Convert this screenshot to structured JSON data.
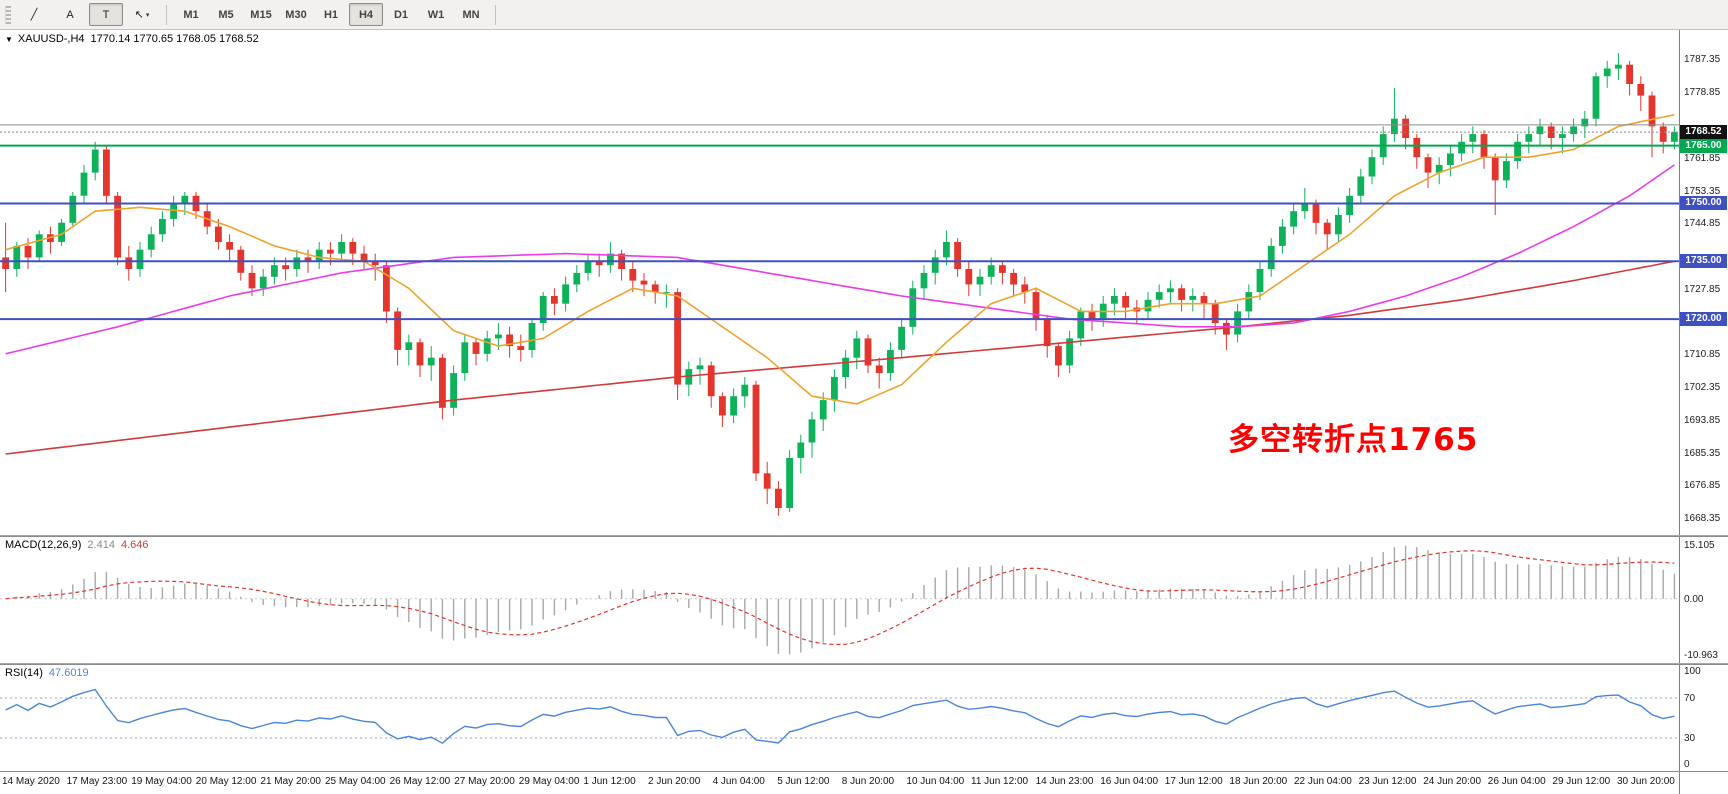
{
  "toolbar": {
    "tools": [
      {
        "name": "trendline-tool",
        "glyph": "╱"
      },
      {
        "name": "text-tool",
        "glyph": "A"
      },
      {
        "name": "text-label-tool",
        "glyph": "T",
        "active": true
      },
      {
        "name": "cursor-tool",
        "glyph": "↖",
        "caret": true
      }
    ],
    "timeframes": [
      "M1",
      "M5",
      "M15",
      "M30",
      "H1",
      "H4",
      "D1",
      "W1",
      "MN"
    ],
    "active_timeframe": "H4"
  },
  "chart": {
    "header": {
      "symbol": "XAUUSD-,H4",
      "ohlc": "1770.14 1770.65 1768.05 1768.52"
    },
    "annotation": {
      "text": "多空转折点1765",
      "color": "#ff0000"
    }
  },
  "colors": {
    "candle_up": "#0db25b",
    "candle_down": "#e3352c",
    "macd_hist": "#a8a8a8",
    "macd_signal": "#e3352c",
    "macd_zero": "#c9c9c9",
    "rsi_line": "#4a86d8",
    "rsi_level": "#98a6c8",
    "price_badge": "#111111"
  },
  "chart_data": {
    "type": "candlestick",
    "symbol": "XAUUSD",
    "timeframe": "H4",
    "ylim": [
      1664,
      1795
    ],
    "y_ticks": [
      "1787.35",
      "1778.85",
      "1761.85",
      "1753.35",
      "1744.85",
      "1727.85",
      "1710.85",
      "1702.35",
      "1693.85",
      "1685.35",
      "1676.85",
      "1668.35"
    ],
    "price_line": {
      "price": 1768.52,
      "badge": "1768.52"
    },
    "hlines": [
      {
        "price": 1770.4,
        "color": "#8c8c8c",
        "width": 1,
        "badge": null
      },
      {
        "price": 1765.0,
        "color": "#00a94f",
        "width": 2,
        "badge": "1765.00"
      },
      {
        "price": 1750.0,
        "color": "#3f51c1",
        "width": 2,
        "badge": "1750.00"
      },
      {
        "price": 1735.0,
        "color": "#3f51c1",
        "width": 2,
        "badge": "1735.00"
      },
      {
        "price": 1720.0,
        "color": "#3f51c1",
        "width": 2,
        "badge": "1720.00"
      }
    ],
    "moving_averages": [
      {
        "name": "ma-slow-red",
        "color": "#d23a3a",
        "points": [
          [
            0,
            1685
          ],
          [
            20,
            1692
          ],
          [
            40,
            1699
          ],
          [
            60,
            1705
          ],
          [
            80,
            1710
          ],
          [
            95,
            1714
          ],
          [
            110,
            1718
          ],
          [
            120,
            1721
          ],
          [
            130,
            1725
          ],
          [
            140,
            1730
          ],
          [
            149,
            1735
          ]
        ]
      },
      {
        "name": "ma-mid-magenta",
        "color": "#e83ee8",
        "points": [
          [
            0,
            1711
          ],
          [
            10,
            1718
          ],
          [
            20,
            1726
          ],
          [
            30,
            1732
          ],
          [
            40,
            1736
          ],
          [
            50,
            1737
          ],
          [
            60,
            1736
          ],
          [
            70,
            1731
          ],
          [
            80,
            1726
          ],
          [
            90,
            1722
          ],
          [
            95,
            1720
          ],
          [
            100,
            1719
          ],
          [
            105,
            1718
          ],
          [
            110,
            1718
          ],
          [
            115,
            1719
          ],
          [
            120,
            1722
          ],
          [
            125,
            1726
          ],
          [
            130,
            1731
          ],
          [
            135,
            1737
          ],
          [
            140,
            1744
          ],
          [
            145,
            1752
          ],
          [
            149,
            1760
          ]
        ]
      },
      {
        "name": "ma-fast-orange",
        "color": "#efa32e",
        "points": [
          [
            0,
            1738
          ],
          [
            5,
            1742
          ],
          [
            8,
            1748
          ],
          [
            12,
            1749
          ],
          [
            16,
            1748
          ],
          [
            20,
            1744
          ],
          [
            24,
            1739
          ],
          [
            28,
            1736
          ],
          [
            32,
            1735
          ],
          [
            36,
            1728
          ],
          [
            40,
            1717
          ],
          [
            44,
            1713
          ],
          [
            48,
            1715
          ],
          [
            52,
            1722
          ],
          [
            56,
            1728
          ],
          [
            60,
            1726
          ],
          [
            64,
            1718
          ],
          [
            68,
            1710
          ],
          [
            72,
            1700
          ],
          [
            76,
            1698
          ],
          [
            80,
            1703
          ],
          [
            84,
            1714
          ],
          [
            88,
            1724
          ],
          [
            92,
            1728
          ],
          [
            96,
            1722
          ],
          [
            100,
            1722
          ],
          [
            104,
            1724
          ],
          [
            108,
            1724
          ],
          [
            112,
            1726
          ],
          [
            116,
            1734
          ],
          [
            120,
            1742
          ],
          [
            124,
            1752
          ],
          [
            128,
            1758
          ],
          [
            132,
            1762
          ],
          [
            136,
            1762
          ],
          [
            140,
            1764
          ],
          [
            144,
            1770
          ],
          [
            149,
            1773
          ]
        ]
      }
    ],
    "ohlc": [
      [
        1736,
        1745,
        1727,
        1733
      ],
      [
        1733,
        1740,
        1731,
        1739
      ],
      [
        1739,
        1741,
        1733,
        1736
      ],
      [
        1736,
        1743,
        1735,
        1742
      ],
      [
        1742,
        1744,
        1737,
        1740
      ],
      [
        1740,
        1746,
        1739,
        1745
      ],
      [
        1745,
        1753,
        1744,
        1752
      ],
      [
        1752,
        1760,
        1750,
        1758
      ],
      [
        1758,
        1766,
        1756,
        1764
      ],
      [
        1764,
        1765,
        1750,
        1752
      ],
      [
        1752,
        1753,
        1734,
        1736
      ],
      [
        1736,
        1739,
        1730,
        1733
      ],
      [
        1733,
        1740,
        1731,
        1738
      ],
      [
        1738,
        1744,
        1736,
        1742
      ],
      [
        1742,
        1748,
        1740,
        1746
      ],
      [
        1746,
        1752,
        1744,
        1750
      ],
      [
        1750,
        1753,
        1747,
        1752
      ],
      [
        1752,
        1753,
        1746,
        1748
      ],
      [
        1748,
        1750,
        1742,
        1744
      ],
      [
        1744,
        1746,
        1738,
        1740
      ],
      [
        1740,
        1742,
        1735,
        1738
      ],
      [
        1738,
        1739,
        1730,
        1732
      ],
      [
        1732,
        1734,
        1726,
        1728
      ],
      [
        1728,
        1733,
        1726,
        1731
      ],
      [
        1731,
        1736,
        1729,
        1734
      ],
      [
        1734,
        1736,
        1730,
        1733
      ],
      [
        1733,
        1738,
        1731,
        1736
      ],
      [
        1736,
        1738,
        1732,
        1735
      ],
      [
        1735,
        1740,
        1733,
        1738
      ],
      [
        1738,
        1740,
        1734,
        1737
      ],
      [
        1737,
        1742,
        1735,
        1740
      ],
      [
        1740,
        1741,
        1734,
        1737
      ],
      [
        1737,
        1739,
        1733,
        1735
      ],
      [
        1735,
        1737,
        1730,
        1734
      ],
      [
        1734,
        1735,
        1719,
        1722
      ],
      [
        1722,
        1723,
        1708,
        1712
      ],
      [
        1712,
        1716,
        1708,
        1714
      ],
      [
        1714,
        1715,
        1705,
        1708
      ],
      [
        1708,
        1713,
        1704,
        1710
      ],
      [
        1710,
        1711,
        1694,
        1697
      ],
      [
        1697,
        1708,
        1695,
        1706
      ],
      [
        1706,
        1716,
        1704,
        1714
      ],
      [
        1714,
        1715,
        1708,
        1711
      ],
      [
        1711,
        1717,
        1709,
        1715
      ],
      [
        1715,
        1719,
        1712,
        1716
      ],
      [
        1716,
        1718,
        1710,
        1713
      ],
      [
        1713,
        1716,
        1709,
        1712
      ],
      [
        1712,
        1720,
        1710,
        1719
      ],
      [
        1719,
        1727,
        1717,
        1726
      ],
      [
        1726,
        1728,
        1721,
        1724
      ],
      [
        1724,
        1731,
        1722,
        1729
      ],
      [
        1729,
        1734,
        1727,
        1732
      ],
      [
        1732,
        1737,
        1730,
        1735
      ],
      [
        1735,
        1737,
        1731,
        1734
      ],
      [
        1734,
        1740,
        1732,
        1737
      ],
      [
        1737,
        1738,
        1730,
        1733
      ],
      [
        1733,
        1735,
        1727,
        1730
      ],
      [
        1730,
        1732,
        1726,
        1729
      ],
      [
        1729,
        1730,
        1724,
        1727
      ],
      [
        1727,
        1729,
        1723,
        1727
      ],
      [
        1727,
        1728,
        1699,
        1703
      ],
      [
        1703,
        1709,
        1700,
        1707
      ],
      [
        1707,
        1710,
        1703,
        1708
      ],
      [
        1708,
        1709,
        1697,
        1700
      ],
      [
        1700,
        1701,
        1692,
        1695
      ],
      [
        1695,
        1702,
        1693,
        1700
      ],
      [
        1700,
        1705,
        1697,
        1703
      ],
      [
        1703,
        1704,
        1678,
        1680
      ],
      [
        1680,
        1683,
        1672,
        1676
      ],
      [
        1676,
        1678,
        1669,
        1671
      ],
      [
        1671,
        1686,
        1670,
        1684
      ],
      [
        1684,
        1690,
        1680,
        1688
      ],
      [
        1688,
        1696,
        1684,
        1694
      ],
      [
        1694,
        1701,
        1691,
        1699
      ],
      [
        1699,
        1707,
        1696,
        1705
      ],
      [
        1705,
        1712,
        1702,
        1710
      ],
      [
        1710,
        1717,
        1707,
        1715
      ],
      [
        1715,
        1716,
        1706,
        1708
      ],
      [
        1708,
        1710,
        1702,
        1706
      ],
      [
        1706,
        1714,
        1704,
        1712
      ],
      [
        1712,
        1720,
        1710,
        1718
      ],
      [
        1718,
        1730,
        1716,
        1728
      ],
      [
        1728,
        1734,
        1725,
        1732
      ],
      [
        1732,
        1738,
        1729,
        1736
      ],
      [
        1736,
        1743,
        1734,
        1740
      ],
      [
        1740,
        1741,
        1731,
        1733
      ],
      [
        1733,
        1735,
        1726,
        1729
      ],
      [
        1729,
        1733,
        1726,
        1731
      ],
      [
        1731,
        1736,
        1729,
        1734
      ],
      [
        1734,
        1735,
        1729,
        1732
      ],
      [
        1732,
        1733,
        1726,
        1729
      ],
      [
        1729,
        1731,
        1724,
        1727
      ],
      [
        1727,
        1728,
        1717,
        1720
      ],
      [
        1720,
        1721,
        1710,
        1713
      ],
      [
        1713,
        1714,
        1705,
        1708
      ],
      [
        1708,
        1717,
        1706,
        1715
      ],
      [
        1715,
        1723,
        1713,
        1722
      ],
      [
        1722,
        1724,
        1717,
        1720
      ],
      [
        1720,
        1726,
        1718,
        1724
      ],
      [
        1724,
        1728,
        1721,
        1726
      ],
      [
        1726,
        1727,
        1720,
        1723
      ],
      [
        1723,
        1725,
        1719,
        1722
      ],
      [
        1722,
        1727,
        1720,
        1725
      ],
      [
        1725,
        1729,
        1723,
        1727
      ],
      [
        1727,
        1730,
        1724,
        1728
      ],
      [
        1728,
        1729,
        1722,
        1725
      ],
      [
        1725,
        1728,
        1722,
        1726
      ],
      [
        1726,
        1727,
        1720,
        1724
      ],
      [
        1724,
        1725,
        1716,
        1719
      ],
      [
        1719,
        1720,
        1712,
        1716
      ],
      [
        1716,
        1724,
        1714,
        1722
      ],
      [
        1722,
        1729,
        1720,
        1727
      ],
      [
        1727,
        1735,
        1725,
        1733
      ],
      [
        1733,
        1741,
        1731,
        1739
      ],
      [
        1739,
        1746,
        1737,
        1744
      ],
      [
        1744,
        1750,
        1742,
        1748
      ],
      [
        1748,
        1754,
        1746,
        1750
      ],
      [
        1750,
        1751,
        1742,
        1745
      ],
      [
        1745,
        1746,
        1738,
        1742
      ],
      [
        1742,
        1749,
        1740,
        1747
      ],
      [
        1747,
        1754,
        1745,
        1752
      ],
      [
        1752,
        1759,
        1750,
        1757
      ],
      [
        1757,
        1764,
        1755,
        1762
      ],
      [
        1762,
        1770,
        1760,
        1768
      ],
      [
        1768,
        1780,
        1766,
        1772
      ],
      [
        1772,
        1773,
        1764,
        1767
      ],
      [
        1767,
        1768,
        1759,
        1762
      ],
      [
        1762,
        1763,
        1754,
        1758
      ],
      [
        1758,
        1762,
        1755,
        1760
      ],
      [
        1760,
        1765,
        1757,
        1763
      ],
      [
        1763,
        1768,
        1761,
        1766
      ],
      [
        1766,
        1770,
        1763,
        1768
      ],
      [
        1768,
        1769,
        1759,
        1762
      ],
      [
        1762,
        1763,
        1747,
        1756
      ],
      [
        1756,
        1763,
        1754,
        1761
      ],
      [
        1761,
        1768,
        1759,
        1766
      ],
      [
        1766,
        1770,
        1763,
        1768
      ],
      [
        1768,
        1772,
        1765,
        1770
      ],
      [
        1770,
        1771,
        1764,
        1767
      ],
      [
        1767,
        1770,
        1763,
        1768
      ],
      [
        1768,
        1772,
        1766,
        1770
      ],
      [
        1770,
        1774,
        1767,
        1772
      ],
      [
        1772,
        1784,
        1770,
        1783
      ],
      [
        1783,
        1787,
        1780,
        1785
      ],
      [
        1785,
        1789,
        1782,
        1786
      ],
      [
        1786,
        1787,
        1778,
        1781
      ],
      [
        1781,
        1783,
        1774,
        1778
      ],
      [
        1778,
        1779,
        1762,
        1770
      ],
      [
        1770,
        1771,
        1763,
        1766
      ],
      [
        1766,
        1770,
        1764,
        1768.5
      ]
    ],
    "x_labels": [
      "14 May 2020",
      "17 May 23:00",
      "19 May 04:00",
      "20 May 12:00",
      "21 May 20:00",
      "25 May 04:00",
      "26 May 12:00",
      "27 May 20:00",
      "29 May 04:00",
      "1 Jun 12:00",
      "2 Jun 20:00",
      "4 Jun 04:00",
      "5 Jun 12:00",
      "8 Jun 20:00",
      "10 Jun 04:00",
      "11 Jun 12:00",
      "14 Jun 23:00",
      "16 Jun 04:00",
      "17 Jun 12:00",
      "18 Jun 20:00",
      "22 Jun 04:00",
      "23 Jun 12:00",
      "24 Jun 20:00",
      "26 Jun 04:00",
      "29 Jun 12:00",
      "30 Jun 20:00"
    ],
    "indicators": [
      {
        "label": "MACD(12,26,9)",
        "value_main": "2.414",
        "value_signal": "4.646",
        "y_ticks": [
          "15.105",
          "0.00",
          "-10.963"
        ]
      },
      {
        "label": "RSI(14)",
        "value": "47.6019",
        "levels": [
          70,
          30
        ],
        "y_ticks": [
          "100",
          "70",
          "30",
          "0"
        ]
      }
    ]
  }
}
